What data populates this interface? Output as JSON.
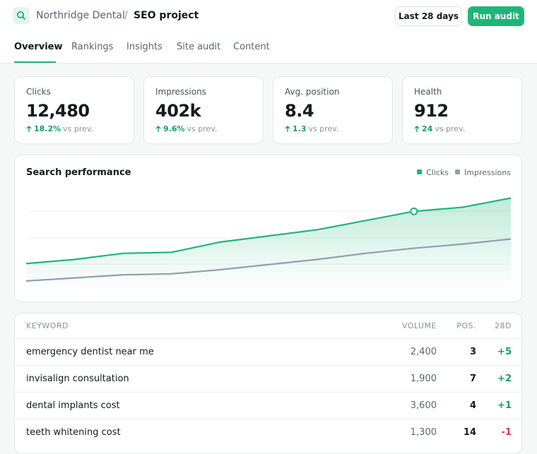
{
  "header": {
    "project": "Northridge Dental",
    "separator": "/",
    "page": "SEO project",
    "range_button": "Last 28 days",
    "action_button": "Run audit"
  },
  "nav": {
    "tabs": [
      "Overview",
      "Rankings",
      "Insights",
      "Site audit",
      "Content"
    ]
  },
  "kpis": [
    {
      "label": "Clicks",
      "value": "12,480",
      "delta": "18.2%",
      "suffix": "vs prev."
    },
    {
      "label": "Impressions",
      "value": "402k",
      "delta": "9.6%",
      "suffix": "vs prev."
    },
    {
      "label": "Avg. position",
      "value": "8.4",
      "delta": "1.3",
      "suffix": "vs prev."
    },
    {
      "label": "Health",
      "value": "912",
      "delta": "24",
      "suffix": "vs prev."
    }
  ],
  "chart_data": {
    "type": "line",
    "title": "Search performance",
    "x": [
      0,
      1,
      2,
      3,
      4,
      5,
      6,
      7,
      8,
      9,
      10
    ],
    "xlim": [
      0,
      10
    ],
    "ylim": [
      0,
      100
    ],
    "series": [
      {
        "name": "Clicks",
        "color": "#1fb57a",
        "values": [
          26,
          30,
          36,
          37,
          47,
          53,
          59,
          68,
          77,
          81,
          90
        ],
        "area": true,
        "highlight_index": 8
      },
      {
        "name": "Impressions",
        "color": "#929eae",
        "values": [
          9,
          12,
          15,
          16,
          20,
          25,
          30,
          36,
          41,
          45,
          50
        ]
      }
    ]
  },
  "table": {
    "columns": [
      "KEYWORD",
      "VOLUME",
      "POS.",
      "28D"
    ],
    "rows": [
      [
        "emergency dentist near me",
        "2,400",
        "3",
        "+5"
      ],
      [
        "invisalign consultation",
        "1,900",
        "7",
        "+2"
      ],
      [
        "dental implants cost",
        "3,600",
        "4",
        "+1"
      ],
      [
        "teeth whitening cost",
        "1,300",
        "14",
        "-1"
      ]
    ]
  }
}
